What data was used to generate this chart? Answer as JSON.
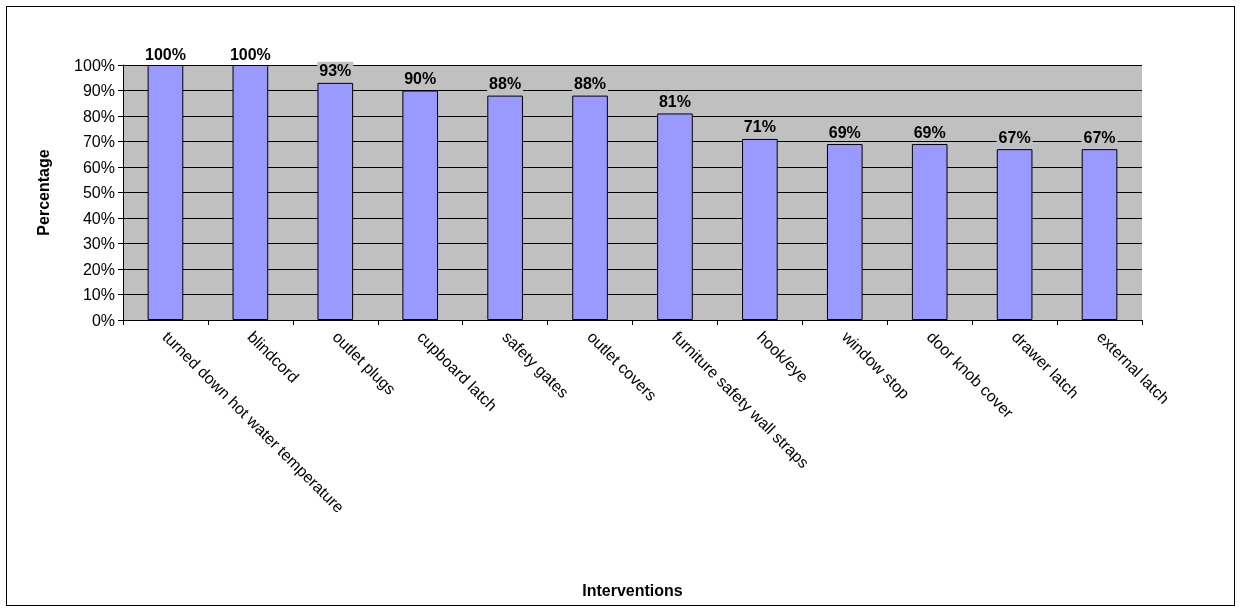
{
  "chart_data": {
    "type": "bar",
    "xlabel": "Interventions",
    "ylabel": "Percentage",
    "categories": [
      "turned down hot water temperature",
      "blindcord",
      "outlet plugs",
      "cupboard latch",
      "safety gates",
      "outlet covers",
      "furniture safety wall straps",
      "hook/eye",
      "window stop",
      "door knob cover",
      "drawer latch",
      "external latch"
    ],
    "values": [
      100,
      100,
      93,
      90,
      88,
      88,
      81,
      71,
      69,
      69,
      67,
      67
    ],
    "value_labels": [
      "100%",
      "100%",
      "93%",
      "90%",
      "88%",
      "88%",
      "81%",
      "71%",
      "69%",
      "69%",
      "67%",
      "67%"
    ],
    "color": "#9999ff",
    "ylim": [
      0,
      100
    ],
    "yticks": [
      {
        "value": 0,
        "label": "0%"
      },
      {
        "value": 10,
        "label": "10%"
      },
      {
        "value": 20,
        "label": "20%"
      },
      {
        "value": 30,
        "label": "30%"
      },
      {
        "value": 40,
        "label": "40%"
      },
      {
        "value": 50,
        "label": "50%"
      },
      {
        "value": 60,
        "label": "60%"
      },
      {
        "value": 70,
        "label": "70%"
      },
      {
        "value": 80,
        "label": "80%"
      },
      {
        "value": 90,
        "label": "90%"
      },
      {
        "value": 100,
        "label": "100%"
      }
    ],
    "grid": "y"
  }
}
